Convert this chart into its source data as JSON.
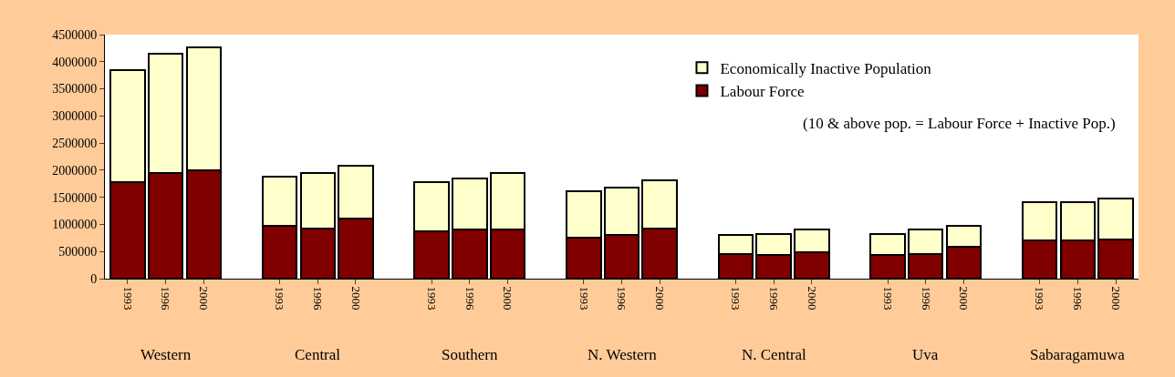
{
  "chart_data": {
    "type": "bar",
    "stacked": true,
    "categories": [
      "1993",
      "1996",
      "2000",
      "1993",
      "1996",
      "2000",
      "1993",
      "1996",
      "2000",
      "1993",
      "1996",
      "2000",
      "1993",
      "1996",
      "2000",
      "1993",
      "1996",
      "2000",
      "1993",
      "1996",
      "2000"
    ],
    "series": [
      {
        "name": "Labour Force",
        "color": "#800000",
        "values": [
          1780000,
          1950000,
          1990000,
          970000,
          930000,
          1100000,
          870000,
          900000,
          900000,
          760000,
          800000,
          930000,
          460000,
          430000,
          490000,
          430000,
          460000,
          580000,
          700000,
          700000,
          730000
        ]
      },
      {
        "name": "Economically Inactive Population",
        "color": "#ffffcc",
        "values": [
          2070000,
          2190000,
          2270000,
          910000,
          1020000,
          990000,
          910000,
          950000,
          1050000,
          850000,
          880000,
          890000,
          340000,
          400000,
          410000,
          400000,
          440000,
          390000,
          710000,
          710000,
          750000
        ]
      }
    ],
    "ylim": [
      0,
      4500000
    ],
    "yticks": [
      0,
      500000,
      1000000,
      1500000,
      2000000,
      2500000,
      3000000,
      3500000,
      4000000,
      4500000
    ],
    "legend": "top right",
    "annotations": [
      "Western",
      "Central",
      "Southern",
      "N. Western",
      "N. Central",
      "Uva",
      "Sabaragamuwa",
      "(10 & above pop. = Labour Force + Inactive Pop.)"
    ]
  }
}
